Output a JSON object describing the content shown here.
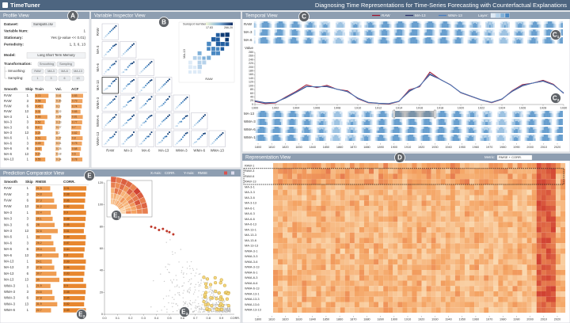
{
  "header": {
    "app": "TimeTuner",
    "title": "Diagnosing Time Representations for Time-Series Forecasting with Counterfactual Explanations"
  },
  "markers": [
    {
      "label": "A"
    },
    {
      "label": "B"
    },
    {
      "label": "C"
    },
    {
      "label": "C",
      "sub": "1"
    },
    {
      "label": "C",
      "sub": "2"
    },
    {
      "label": "D"
    },
    {
      "label": "E"
    },
    {
      "label": "E",
      "sub": "1"
    },
    {
      "label": "E",
      "sub": "2"
    },
    {
      "label": "E",
      "sub": "3"
    }
  ],
  "profile": {
    "title": "Profile View",
    "fields": [
      [
        "Dataset:",
        "Sunspots.csv"
      ],
      [
        "Variable Num:",
        "1"
      ],
      [
        "Stationary:",
        "Yes (p-value << 0.01)"
      ],
      [
        "Periodicity:",
        "1, 3, 6, 13"
      ]
    ],
    "model_label": "Model:",
    "model": "Long Short Term Memory",
    "transformation": "Transformation:",
    "transformation_options": [
      "Smoothing",
      "Sampling"
    ],
    "smoothing": "Smoothing:",
    "smoothing_options": [
      "RAW",
      "MA-3",
      "MA-6",
      "MA-13"
    ],
    "sampling": "Sampling:",
    "sampling_options": [
      "1",
      "3",
      "6",
      "13"
    ],
    "table": {
      "headers": [
        "Smooth",
        "Skip",
        "Train",
        "Val.",
        "ACF"
      ],
      "rows": [
        [
          "RAW",
          1,
          0.72,
          0.41,
          0.83
        ],
        [
          "RAW",
          3,
          0.58,
          0.36,
          0.79
        ],
        [
          "RAW",
          6,
          0.45,
          0.3,
          0.74
        ],
        [
          "RAW",
          13,
          0.31,
          0.22,
          0.65
        ],
        [
          "MA-3",
          1,
          0.66,
          0.39,
          0.81
        ],
        [
          "MA-3",
          3,
          0.52,
          0.33,
          0.77
        ],
        [
          "MA-3",
          6,
          0.4,
          0.27,
          0.7
        ],
        [
          "MA-3",
          13,
          0.28,
          0.2,
          0.62
        ],
        [
          "MA-6",
          1,
          0.61,
          0.37,
          0.8
        ],
        [
          "MA-6",
          3,
          0.49,
          0.31,
          0.75
        ],
        [
          "MA-6",
          6,
          0.37,
          0.25,
          0.68
        ],
        [
          "MA-6",
          13,
          0.26,
          0.18,
          0.6
        ],
        [
          "MA-13",
          1,
          0.55,
          0.34,
          0.78
        ]
      ]
    }
  },
  "inspector": {
    "title": "Variable Inspector View",
    "variables": [
      "RAW",
      "MA-3",
      "MA-6",
      "MA-13",
      "WMA-3",
      "WMA-6",
      "WMA-13"
    ],
    "legend_title": "Sunspot number",
    "legend_min": 17.83,
    "legend_max": {
      "value": 266.2,
      "label": "266.20"
    },
    "inset_x": "RAW",
    "inset_y": "MA-13"
  },
  "temporal": {
    "title": "Temporal View",
    "layer_label": "Layer:",
    "rows": [
      "RAW",
      "MA-3",
      "MA-6"
    ],
    "overview_rows": [
      "MA-13",
      "WMA-3",
      "WMA-6",
      "WMA-13"
    ],
    "overview_ticks": [
      1800,
      1810,
      1820,
      1830,
      1840,
      1850,
      1860,
      1870,
      1880,
      1890,
      1900,
      1910,
      1920,
      1930,
      1940,
      1950,
      1960,
      1970,
      1980,
      1990,
      2000,
      2010,
      2020
    ],
    "chart": {
      "type": "line",
      "y_label": "Value",
      "x": [
        1900,
        1901,
        1902,
        1903,
        1904,
        1905,
        1906,
        1907,
        1908,
        1909,
        1910,
        1911,
        1912,
        1913,
        1914,
        1915,
        1916,
        1917,
        1918,
        1919,
        1920,
        1921,
        1922,
        1923,
        1924,
        1925,
        1926,
        1927,
        1928,
        1929,
        1930
      ],
      "series": [
        {
          "name": "RAW",
          "color": "#a3122c",
          "values": [
            15.7,
            4.6,
            8.5,
            40.8,
            70.1,
            105.5,
            90.1,
            102.8,
            80.9,
            73.2,
            30.9,
            9.5,
            6,
            2.4,
            16.1,
            79,
            95,
            173.6,
            134.6,
            105.7,
            62.7,
            43.5,
            23.7,
            9.7,
            27.9,
            74,
            106.5,
            114.7,
            129.7,
            108.2,
            59.4
          ]
        },
        {
          "name": "MA-13",
          "color": "#2b2f6b",
          "values": [
            20,
            10,
            12,
            35,
            65,
            95,
            95,
            95,
            82,
            68,
            35,
            12,
            7,
            5,
            18,
            70,
            100,
            160,
            135,
            105,
            65,
            45,
            25,
            12,
            30,
            70,
            100,
            115,
            125,
            105,
            62
          ]
        },
        {
          "name": "WMA-13",
          "color": "#4a7fc1",
          "values": [
            18,
            8,
            11,
            38,
            67,
            98,
            93,
            98,
            81,
            70,
            33,
            11,
            6,
            4,
            17,
            74,
            98,
            165,
            134,
            105,
            64,
            44,
            24,
            11,
            29,
            72,
            103,
            115,
            127,
            106,
            60
          ]
        }
      ],
      "xlim": [
        1900,
        1930
      ],
      "xticks": [
        1900,
        1902,
        1904,
        1906,
        1908,
        1910,
        1912,
        1914,
        1916,
        1918,
        1920,
        1922,
        1924,
        1926,
        1928,
        1930
      ],
      "ylim": [
        0,
        280
      ],
      "yticks": [
        0,
        20,
        40,
        60,
        80,
        100,
        120,
        140,
        160,
        180,
        200,
        220,
        240,
        260,
        280
      ]
    }
  },
  "representation": {
    "title": "Representation View",
    "metric_label": "Metric:",
    "metric": "RMSE + CORR.",
    "rows": [
      "RAW-1",
      "RAW-3",
      "RAW-6",
      "RAW-13",
      "MA-3-1",
      "MA-3-3",
      "MA-3-6",
      "MA-3-13",
      "MA-6-1",
      "MA-6-3",
      "MA-6-6",
      "MA-6-13",
      "MA-13-1",
      "MA-13-3",
      "MA-13-6",
      "MA-13-13",
      "WMA-3-1",
      "WMA-3-3",
      "WMA-3-6",
      "WMA-3-13",
      "WMA-6-1",
      "WMA-6-3",
      "WMA-6-6",
      "WMA-6-13",
      "WMA-13-1",
      "WMA-13-3",
      "WMA-13-6",
      "WMA-13-13"
    ],
    "xticks": [
      1800,
      1810,
      1820,
      1830,
      1840,
      1850,
      1860,
      1870,
      1880,
      1890,
      1900,
      1910,
      1920,
      1930,
      1940,
      1950,
      1960,
      1970,
      1980,
      1990,
      2000,
      2010,
      2020
    ]
  },
  "comparator": {
    "title": "Prediction Comparator View",
    "x_axis_label": "X-Axis:",
    "x_axis": "CORR.",
    "y_axis_label": "Y-Axis:",
    "y_axis": "RMSE",
    "table": {
      "headers": [
        "Smooth",
        "Skip",
        "RMSE",
        "CORR."
      ],
      "rows": [
        [
          "RAW",
          1,
          21.5,
          0.91
        ],
        [
          "RAW",
          3,
          24.8,
          0.88
        ],
        [
          "RAW",
          6,
          27.3,
          0.86
        ],
        [
          "RAW",
          13,
          31.2,
          0.82
        ],
        [
          "MA-3",
          1,
          22.4,
          0.9
        ],
        [
          "MA-3",
          3,
          25.1,
          0.88
        ],
        [
          "MA-3",
          6,
          28,
          0.85
        ],
        [
          "MA-3",
          13,
          32.6,
          0.81
        ],
        [
          "MA-6",
          1,
          23,
          0.89
        ],
        [
          "MA-6",
          3,
          26.2,
          0.87
        ],
        [
          "MA-6",
          6,
          29.4,
          0.84
        ],
        [
          "MA-6",
          13,
          33.8,
          0.8
        ],
        [
          "MA-13",
          1,
          24.1,
          0.89
        ],
        [
          "MA-13",
          3,
          27.5,
          0.86
        ],
        [
          "MA-13",
          6,
          30.7,
          0.83
        ],
        [
          "MA-13",
          13,
          35,
          0.79
        ],
        [
          "WMA-3",
          1,
          21.9,
          0.9
        ],
        [
          "WMA-3",
          3,
          24.6,
          0.88
        ],
        [
          "WMA-3",
          6,
          27.8,
          0.85
        ],
        [
          "WMA-3",
          13,
          31.9,
          0.82
        ],
        [
          "WMA-6",
          1,
          22.7,
          0.89
        ]
      ]
    },
    "scatter": {
      "type": "scatter",
      "x_label": "CORR.",
      "x": [
        0.36,
        0.39,
        0.42,
        0.45,
        0.48,
        0.5,
        0.53
      ],
      "y": [
        80,
        79,
        77,
        78,
        76,
        75,
        73
      ],
      "color": "#c0392b",
      "xlim": [
        0,
        1
      ],
      "xticks": [
        {
          "value": 0,
          "label": "0.0"
        },
        0.1,
        0.2,
        0.3,
        0.4,
        0.5,
        0.6,
        0.7,
        0.8,
        0.9
      ],
      "ylim": [
        0,
        120
      ],
      "yticks": [
        0,
        20,
        40,
        60,
        80,
        100,
        120
      ]
    }
  }
}
